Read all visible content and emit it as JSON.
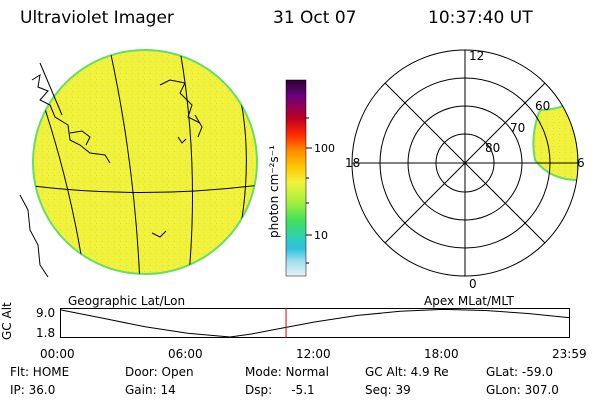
{
  "header": {
    "instrument": "Ultraviolet Imager",
    "date": "31 Oct 07",
    "time": "10:37:40 UT"
  },
  "geo_panel": {
    "label": "Geographic Lat/Lon",
    "disk_color": "#f2f23a",
    "limb_color": "#66dd66"
  },
  "colorbar": {
    "unit_label": "photon cm⁻²s⁻¹",
    "ticks": [
      "100",
      "10"
    ],
    "scale": "log",
    "colors": [
      "#2a0030",
      "#6a0080",
      "#c00020",
      "#ff2a00",
      "#ff8a00",
      "#ffc400",
      "#f2f23a",
      "#a8f03a",
      "#40e060",
      "#30d0b0",
      "#30c0e0",
      "#a8e0ee",
      "#e8f0f4"
    ]
  },
  "polar_panel": {
    "label": "Apex MLat/MLT",
    "lat_rings": [
      "60",
      "70",
      "80"
    ],
    "mlt_labels": {
      "top": "12",
      "bottom": "0",
      "left": "18",
      "right": "6"
    }
  },
  "timeline": {
    "ylabel": "GC Alt",
    "ytick_top": "9.0",
    "ytick_bottom": "1.8",
    "xticks": [
      "00:00",
      "06:00",
      "12:00",
      "18:00",
      "23:59"
    ],
    "current_marker_time": "10:37:40",
    "marker_color": "#dd0000",
    "altitude_curve": [
      {
        "t": 0.0,
        "alt": 9.0
      },
      {
        "t": 2.0,
        "alt": 6.8
      },
      {
        "t": 4.0,
        "alt": 4.5
      },
      {
        "t": 6.0,
        "alt": 2.8
      },
      {
        "t": 8.0,
        "alt": 1.8
      },
      {
        "t": 9.0,
        "alt": 2.6
      },
      {
        "t": 10.5,
        "alt": 4.2
      },
      {
        "t": 12.0,
        "alt": 5.8
      },
      {
        "t": 14.0,
        "alt": 7.5
      },
      {
        "t": 16.0,
        "alt": 8.6
      },
      {
        "t": 18.0,
        "alt": 9.1
      },
      {
        "t": 20.0,
        "alt": 8.8
      },
      {
        "t": 22.0,
        "alt": 8.0
      },
      {
        "t": 23.98,
        "alt": 6.9
      }
    ]
  },
  "status": {
    "flt": "Flt: HOME",
    "ip": "IP: 36.0",
    "door": "Door: Open",
    "gain": "Gain: 14",
    "mode": "Mode: Normal",
    "dsp": "Dsp:     -5.1",
    "gc_alt": "GC Alt: 4.9 Re",
    "seq": "Seq: 39",
    "glat": "GLat: -59.0",
    "glon": "GLon: 307.0"
  }
}
